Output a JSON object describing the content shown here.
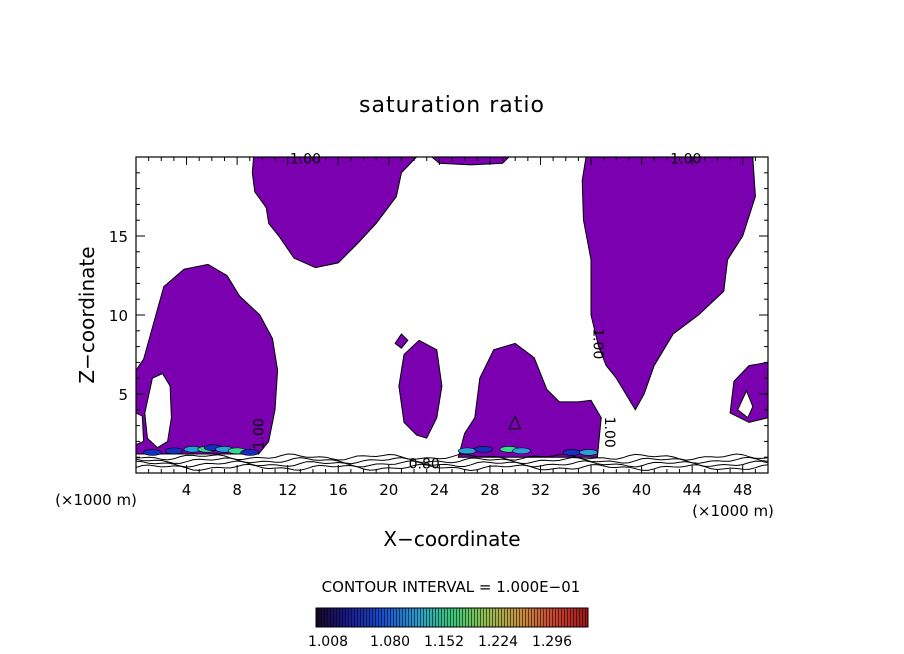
{
  "chart_data": {
    "type": "contour",
    "title": "saturation ratio",
    "xlabel": "X−coordinate",
    "ylabel": "Z−coordinate",
    "x_unit_label": "(×1000 m)",
    "x_unit_label_right": "(×1000 m)",
    "xlim": [
      0,
      50
    ],
    "ylim": [
      0,
      20
    ],
    "x_ticks": [
      4,
      8,
      12,
      16,
      20,
      24,
      28,
      32,
      36,
      40,
      44,
      48
    ],
    "y_ticks": [
      5,
      10,
      15
    ],
    "contour_interval_text": "CONTOUR INTERVAL = 1.000E−01",
    "contour_labels": [
      "1.00",
      "1.00",
      "1.00",
      "1.00",
      "1.00",
      "0.80"
    ],
    "colorbar": {
      "ticks": [
        "1.008",
        "1.080",
        "1.152",
        "1.224",
        "1.296"
      ],
      "colors": [
        "#1a0a40",
        "#1530c0",
        "#2aa0d8",
        "#38d890",
        "#9ad060",
        "#e0a040",
        "#d04030",
        "#b01818"
      ]
    },
    "fill_color": "#7a00b0",
    "note": "Purple fill marks saturation ratio above 1.00; colored spots near the surface mark the highest values."
  }
}
